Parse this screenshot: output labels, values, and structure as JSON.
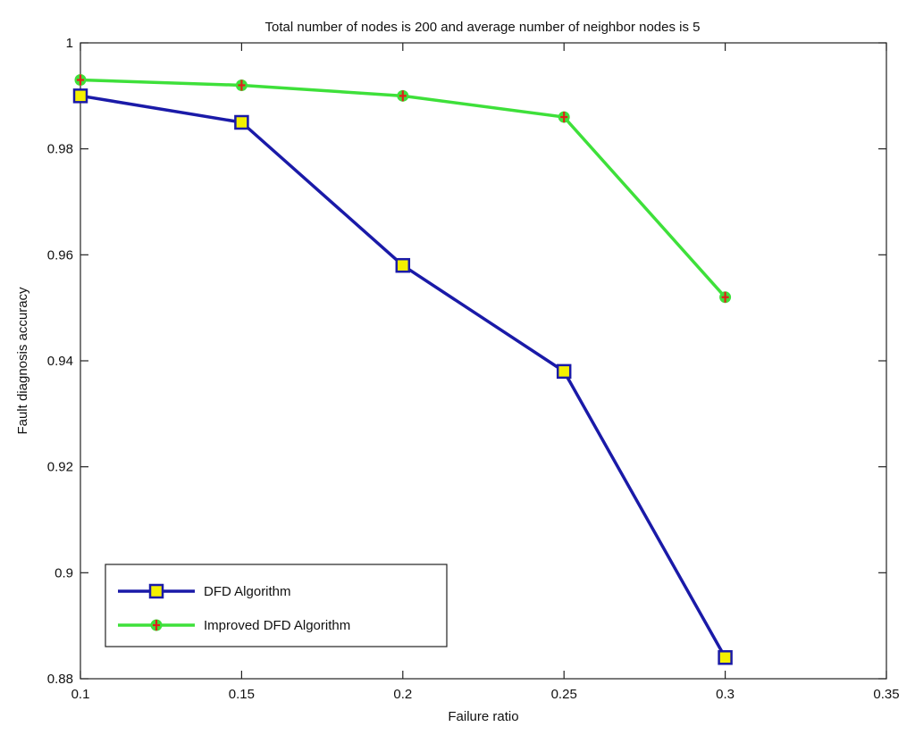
{
  "chart_data": {
    "type": "line",
    "title": "Total number of nodes is 200 and average number of neighbor nodes is 5",
    "xlabel": "Failure ratio",
    "ylabel": "Fault diagnosis accuracy",
    "xlim": [
      0.1,
      0.35
    ],
    "ylim": [
      0.88,
      1.0
    ],
    "xticks": [
      0.1,
      0.15,
      0.2,
      0.25,
      0.3,
      0.35
    ],
    "xtick_labels": [
      "0.1",
      "0.15",
      "0.2",
      "0.25",
      "0.3",
      "0.35"
    ],
    "yticks": [
      0.88,
      0.9,
      0.92,
      0.94,
      0.96,
      0.98,
      1.0
    ],
    "ytick_labels": [
      "0.88",
      "0.9",
      "0.92",
      "0.94",
      "0.96",
      "0.98",
      "1"
    ],
    "grid": false,
    "legend_position": "bottom-left",
    "x": [
      0.1,
      0.15,
      0.2,
      0.25,
      0.3
    ],
    "series": [
      {
        "name": "DFD Algorithm",
        "values": [
          0.99,
          0.985,
          0.958,
          0.938,
          0.884
        ],
        "color": "#1a1aa8",
        "marker": "square",
        "marker_fill": "#f4f000"
      },
      {
        "name": "Improved DFD Algorithm",
        "values": [
          0.993,
          0.992,
          0.99,
          0.986,
          0.952
        ],
        "color": "#3ee03a",
        "marker": "star",
        "marker_fill": "#e0201a"
      }
    ]
  }
}
